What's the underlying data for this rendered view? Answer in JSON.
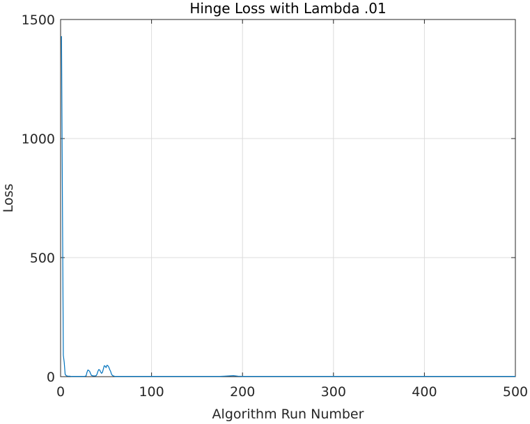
{
  "chart_data": {
    "type": "line",
    "title": "Hinge Loss with Lambda .01",
    "xlabel": "Algorithm Run Number",
    "ylabel": "Loss",
    "xlim": [
      0,
      500
    ],
    "ylim": [
      0,
      1500
    ],
    "xticks": [
      0,
      100,
      200,
      300,
      400,
      500
    ],
    "yticks": [
      0,
      500,
      1000,
      1500
    ],
    "xtick_labels": [
      "0",
      "100",
      "200",
      "300",
      "400",
      "500"
    ],
    "ytick_labels": [
      "0",
      "500",
      "1000",
      "1500"
    ],
    "grid": true,
    "series": [
      {
        "color": "#0072bd",
        "x": [
          1,
          2,
          3,
          4,
          5,
          6,
          7,
          8,
          9,
          10,
          12,
          14,
          16,
          18,
          20,
          22,
          24,
          26,
          28,
          29,
          30,
          31,
          32,
          33,
          34,
          35,
          36,
          37,
          38,
          39,
          40,
          41,
          42,
          43,
          44,
          45,
          46,
          47,
          48,
          49,
          50,
          51,
          52,
          53,
          54,
          55,
          56,
          57,
          58,
          59,
          60,
          61,
          62,
          63,
          65,
          70,
          80,
          100,
          150,
          175,
          180,
          185,
          190,
          195,
          200,
          250,
          300,
          350,
          400,
          450,
          500
        ],
        "y": [
          1430,
          750,
          90,
          60,
          10,
          5,
          3,
          2,
          2,
          2,
          1,
          1,
          1,
          1,
          1,
          1,
          1,
          1,
          3,
          18,
          28,
          26,
          22,
          12,
          5,
          4,
          3,
          3,
          3,
          4,
          10,
          22,
          30,
          28,
          20,
          14,
          18,
          32,
          46,
          44,
          38,
          48,
          46,
          40,
          30,
          22,
          10,
          5,
          3,
          2,
          1,
          1,
          1,
          1,
          1,
          1,
          1,
          1,
          1,
          1,
          2,
          3,
          4,
          2,
          1,
          1,
          1,
          1,
          1,
          1,
          1
        ]
      }
    ]
  }
}
